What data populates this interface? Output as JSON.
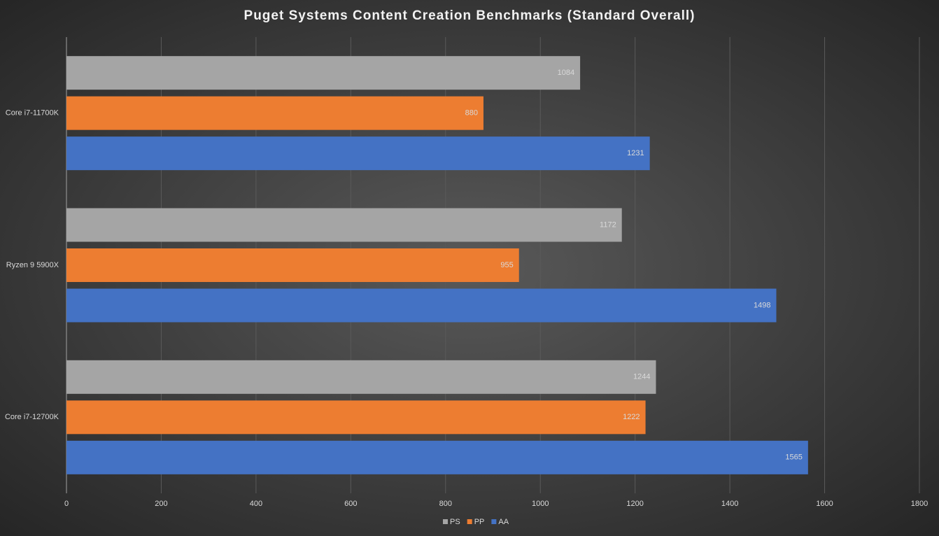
{
  "chart_data": {
    "type": "hbar",
    "title": "Puget Systems Content Creation Benchmarks (Standard Overall)",
    "categories": [
      "Core i7-11700K",
      "Ryzen 9 5900X",
      "Core i7-12700K"
    ],
    "series": [
      {
        "name": "PS",
        "color": "#a5a5a5",
        "values": [
          1084,
          1172,
          1244
        ]
      },
      {
        "name": "PP",
        "color": "#ed7d31",
        "values": [
          880,
          955,
          1222
        ]
      },
      {
        "name": "AA",
        "color": "#4472c4",
        "values": [
          1231,
          1498,
          1565
        ]
      }
    ],
    "xlim": [
      0,
      1800
    ],
    "xticks": [
      0,
      200,
      400,
      600,
      800,
      1000,
      1200,
      1400,
      1600,
      1800
    ],
    "grid": true,
    "legend": "bottom"
  }
}
